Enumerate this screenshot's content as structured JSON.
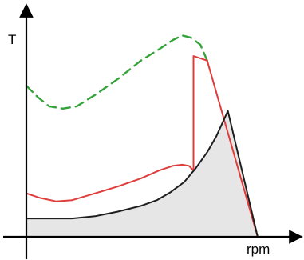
{
  "chart_data": {
    "type": "line",
    "title": "",
    "xlabel": "rpm",
    "ylabel": "T",
    "tick_labels": {
      "x": [],
      "y": []
    },
    "grid": false,
    "legend": "none",
    "xlim": [
      0,
      100
    ],
    "ylim": [
      0,
      100
    ],
    "series": [
      {
        "style": "dashed",
        "color": "#33a33a",
        "points": [
          [
            0,
            66
          ],
          [
            5,
            61
          ],
          [
            10,
            57
          ],
          [
            16,
            56
          ],
          [
            22,
            57
          ],
          [
            30,
            62
          ],
          [
            40,
            69
          ],
          [
            50,
            77
          ],
          [
            58,
            82
          ],
          [
            64,
            86
          ],
          [
            68,
            88
          ],
          [
            72,
            87
          ],
          [
            76,
            84
          ],
          [
            79,
            77
          ]
        ]
      },
      {
        "style": "solid",
        "color": "#e03c3c",
        "points": [
          [
            0,
            19
          ],
          [
            6,
            17
          ],
          [
            13,
            15.5
          ],
          [
            20,
            16
          ],
          [
            30,
            19
          ],
          [
            40,
            22
          ],
          [
            50,
            25.5
          ],
          [
            58,
            29
          ],
          [
            64,
            31
          ],
          [
            68,
            31.5
          ],
          [
            71,
            31
          ],
          [
            73,
            29
          ],
          [
            73,
            79
          ],
          [
            79,
            77
          ],
          [
            87,
            49
          ],
          [
            101,
            0
          ]
        ]
      },
      {
        "style": "solid",
        "color": "#1e1e1e",
        "fill": "#e6e6e6",
        "points": [
          [
            0,
            8
          ],
          [
            20,
            8
          ],
          [
            30,
            9
          ],
          [
            40,
            11
          ],
          [
            50,
            13.5
          ],
          [
            57,
            16
          ],
          [
            63,
            19.5
          ],
          [
            69,
            24
          ],
          [
            74,
            30
          ],
          [
            79,
            37
          ],
          [
            83,
            44
          ],
          [
            88,
            55
          ],
          [
            101,
            0
          ]
        ]
      }
    ]
  }
}
